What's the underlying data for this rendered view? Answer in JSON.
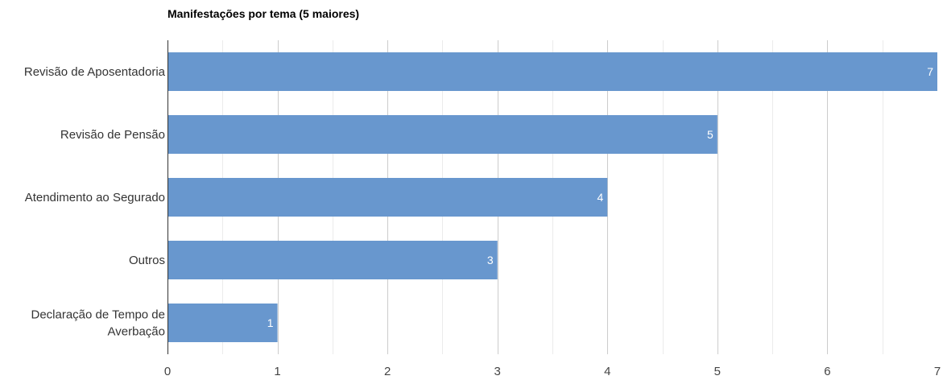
{
  "chart_data": {
    "type": "bar",
    "orientation": "horizontal",
    "title": "Manifestações por tema (5 maiores)",
    "categories": [
      "Revisão de Aposentadoria",
      "Revisão de Pensão",
      "Atendimento ao Segurado",
      "Outros",
      "Declaração de Tempo de Averbação"
    ],
    "category_label_lines": [
      [
        "Revisão de Aposentadoria"
      ],
      [
        "Revisão de Pensão"
      ],
      [
        "Atendimento ao Segurado"
      ],
      [
        "Outros"
      ],
      [
        "Declaração de Tempo de",
        "Averbação"
      ]
    ],
    "values": [
      7,
      5,
      4,
      3,
      1
    ],
    "xlim": [
      0,
      7
    ],
    "x_ticks": [
      0,
      1,
      2,
      3,
      4,
      5,
      6,
      7
    ],
    "grid": true,
    "data_labels": true,
    "bar_color": "#6897CE",
    "grid_color": "#CCCCCC",
    "axis_color": "#333333"
  }
}
